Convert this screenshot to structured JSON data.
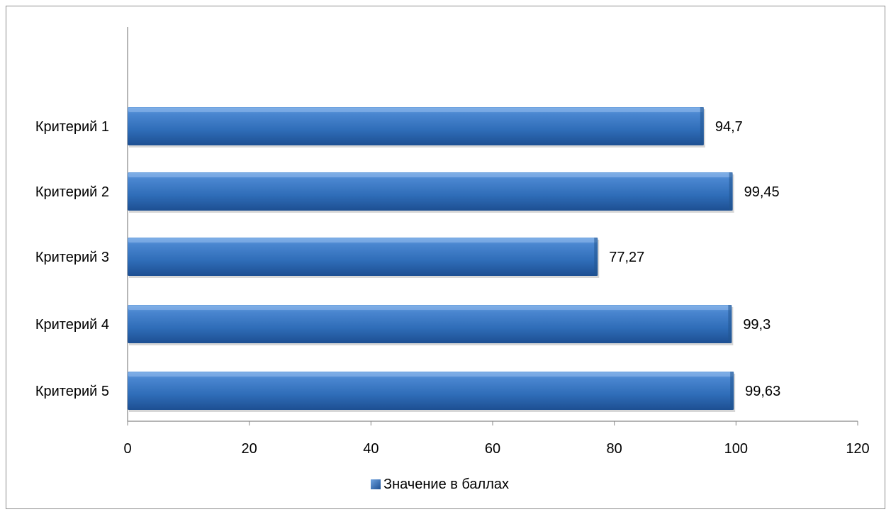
{
  "chart_data": {
    "type": "bar",
    "orientation": "horizontal",
    "categories": [
      "Критерий 1",
      "Критерий 2",
      "Критерий 3",
      "Критерий 4",
      "Критерий 5"
    ],
    "series": [
      {
        "name": "Значение в баллах",
        "values": [
          94.7,
          99.45,
          77.27,
          99.3,
          99.63
        ],
        "labels": [
          "94,7",
          "99,45",
          "77,27",
          "99,3",
          "99,63"
        ],
        "color": "#2f6db8"
      }
    ],
    "x_ticks": [
      "0",
      "20",
      "40",
      "60",
      "80",
      "100",
      "120"
    ],
    "xlim": [
      0,
      120
    ],
    "grid": false,
    "legend_position": "bottom",
    "title": "",
    "xlabel": "",
    "ylabel": ""
  }
}
